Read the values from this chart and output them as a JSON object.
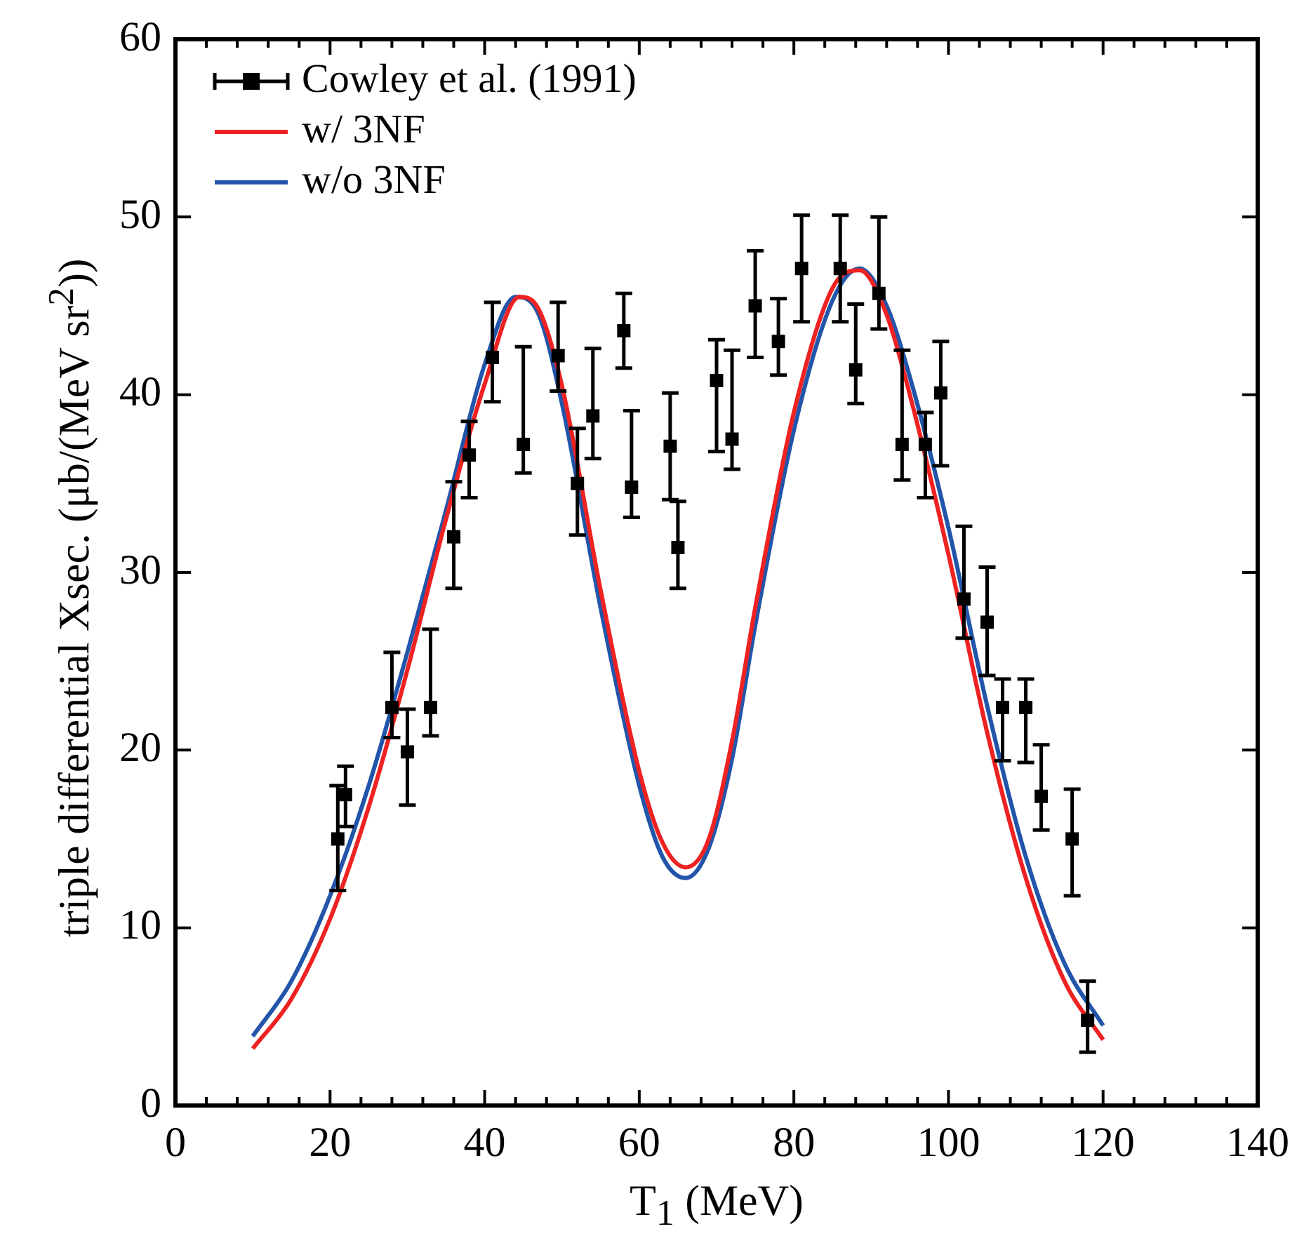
{
  "chart_data": {
    "type": "scatter",
    "xlabel": "T$_{1}$ (MeV)",
    "ylabel": "triple differential Xsec. (μb/(MeV sr$^{2}$))",
    "xlim": [
      0,
      140
    ],
    "xticks": [
      0,
      {
        "value": 4,
        "label": null
      },
      {
        "value": 8,
        "label": null
      },
      {
        "value": 12,
        "label": null
      },
      {
        "value": 16,
        "label": null
      },
      20,
      {
        "value": 24,
        "label": null
      },
      {
        "value": 28,
        "label": null
      },
      {
        "value": 32,
        "label": null
      },
      {
        "value": 36,
        "label": null
      },
      40,
      {
        "value": 44,
        "label": null
      },
      {
        "value": 48,
        "label": null
      },
      {
        "value": 52,
        "label": null
      },
      {
        "value": 56,
        "label": null
      },
      60,
      {
        "value": 64,
        "label": null
      },
      {
        "value": 68,
        "label": null
      },
      {
        "value": 72,
        "label": null
      },
      {
        "value": 76,
        "label": null
      },
      80,
      {
        "value": 84,
        "label": null
      },
      {
        "value": 88,
        "label": null
      },
      {
        "value": 92,
        "label": null
      },
      {
        "value": 96,
        "label": null
      },
      100,
      {
        "value": 104,
        "label": null
      },
      {
        "value": 108,
        "label": null
      },
      {
        "value": 112,
        "label": null
      },
      {
        "value": 116,
        "label": null
      },
      120,
      {
        "value": 124,
        "label": null
      },
      {
        "value": 128,
        "label": null
      },
      {
        "value": 132,
        "label": null
      },
      {
        "value": 136,
        "label": null
      },
      140
    ],
    "ylim": [
      0,
      60
    ],
    "yticks": [
      0,
      10,
      20,
      30,
      40,
      50,
      60
    ],
    "grid": false,
    "legend": "top left",
    "series": [
      {
        "name": "Cowley et al. (1991)",
        "color": "#000000",
        "marker": "square",
        "x": [
          21,
          22,
          28,
          30,
          33,
          36,
          38,
          41,
          45,
          49.5,
          52,
          54,
          58,
          59,
          64,
          65,
          70,
          72,
          75,
          78,
          81,
          86,
          88,
          91,
          94,
          97,
          99,
          102,
          105,
          107,
          110,
          112,
          116,
          118
        ],
        "values": [
          15.0,
          17.5,
          22.4,
          19.9,
          22.4,
          32.0,
          36.6,
          42.1,
          37.2,
          42.2,
          35.0,
          38.8,
          43.6,
          34.8,
          37.1,
          31.4,
          40.8,
          37.5,
          45.0,
          43.0,
          47.1,
          47.1,
          41.4,
          45.7,
          37.2,
          37.2,
          40.1,
          28.5,
          27.2,
          22.4,
          22.4,
          17.4,
          15.0,
          4.8
        ],
        "errors": [
          [
            12.1,
            18.0
          ],
          [
            15.7,
            19.1
          ],
          [
            20.7,
            25.5
          ],
          [
            16.9,
            22.3
          ],
          [
            20.8,
            26.8
          ],
          [
            29.1,
            35.1
          ],
          [
            34.2,
            38.5
          ],
          [
            39.6,
            45.2
          ],
          [
            35.6,
            42.7
          ],
          [
            40.2,
            45.2
          ],
          [
            32.1,
            38.1
          ],
          [
            36.4,
            42.6
          ],
          [
            41.5,
            45.7
          ],
          [
            33.1,
            39.1
          ],
          [
            34.1,
            40.1
          ],
          [
            29.1,
            34.0
          ],
          [
            36.8,
            43.1
          ],
          [
            35.8,
            42.5
          ],
          [
            42.1,
            48.1
          ],
          [
            41.1,
            45.4
          ],
          [
            44.1,
            50.1
          ],
          [
            44.1,
            50.1
          ],
          [
            39.5,
            45.1
          ],
          [
            43.7,
            50.0
          ],
          [
            35.2,
            42.5
          ],
          [
            34.2,
            39.0
          ],
          [
            36.0,
            43.0
          ],
          [
            26.3,
            32.6
          ],
          [
            24.2,
            30.3
          ],
          [
            19.4,
            24.0
          ],
          [
            19.3,
            24.0
          ],
          [
            15.5,
            20.3
          ],
          [
            11.8,
            17.8
          ],
          [
            3.0,
            7.0
          ]
        ]
      },
      {
        "name": "w/ 3NF",
        "type": "line",
        "color": "#ee2222",
        "marker": "none",
        "line_style": "solid",
        "x": [
          10,
          15,
          20,
          25,
          30,
          35,
          40,
          44.5,
          47,
          50,
          55,
          60,
          63,
          66,
          69,
          72,
          75,
          80,
          85,
          88.5,
          92,
          95,
          100,
          105,
          110,
          115,
          120
        ],
        "values": [
          3.2,
          6.0,
          10.5,
          16.8,
          24.5,
          33.0,
          40.6,
          45.5,
          44.8,
          40.5,
          29.0,
          18.8,
          14.8,
          13.4,
          15.0,
          20.5,
          28.0,
          39.0,
          46.0,
          47.0,
          44.5,
          40.0,
          31.0,
          21.0,
          12.8,
          7.0,
          3.7
        ]
      },
      {
        "name": "w/o 3NF",
        "type": "line",
        "color": "#2255aa",
        "marker": "none",
        "line_style": "solid",
        "x": [
          10,
          15,
          20,
          25,
          30,
          35,
          40,
          44,
          47,
          50,
          55,
          60,
          63,
          66,
          69,
          72,
          75,
          80,
          85,
          88.5,
          92,
          95,
          100,
          105,
          110,
          115,
          120
        ],
        "values": [
          3.9,
          7.0,
          11.8,
          18.0,
          25.5,
          33.5,
          41.7,
          45.5,
          44.5,
          39.5,
          28.0,
          18.0,
          14.0,
          12.8,
          14.5,
          19.5,
          27.0,
          38.0,
          45.3,
          47.1,
          45.0,
          41.0,
          32.5,
          22.5,
          14.0,
          8.0,
          4.5
        ]
      }
    ]
  }
}
